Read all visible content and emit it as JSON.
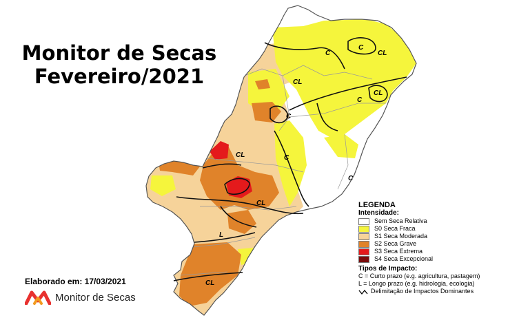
{
  "title": {
    "line1": "Monitor de Secas",
    "line2": "Fevereiro/2021"
  },
  "elaborado": "Elaborado em: 17/03/2021",
  "brand": {
    "name": "Monitor de Secas",
    "colors": [
      "#e8312f",
      "#f29a1f"
    ]
  },
  "legend": {
    "title": "LEGENDA",
    "intensity_label": "Intensidade:",
    "items": [
      {
        "label": "Sem Seca Relativa",
        "color": "#ffffff"
      },
      {
        "label": "S0 Seca Fraca",
        "color": "#f5f53c"
      },
      {
        "label": "S1 Seca Moderada",
        "color": "#f6d39a"
      },
      {
        "label": "S2 Seca Grave",
        "color": "#e0832a"
      },
      {
        "label": "S3 Seca Extrema",
        "color": "#e41a1c"
      },
      {
        "label": "S4 Seca Excepcional",
        "color": "#7a0c0c"
      }
    ],
    "impact_title": "Tipos de Impacto:",
    "impact_c": "C = Curto prazo (e.g. agricultura, pastagem)",
    "impact_l": "L = Longo prazo (e.g. hidrologia, ecologia)",
    "delimitation": "Delimitação de Impactos Dominantes"
  },
  "map": {
    "impact_labels": [
      "C",
      "CL",
      "C",
      "CL",
      "CL",
      "C",
      "C",
      "C",
      "C",
      "CL",
      "CL",
      "L",
      "CL"
    ]
  }
}
